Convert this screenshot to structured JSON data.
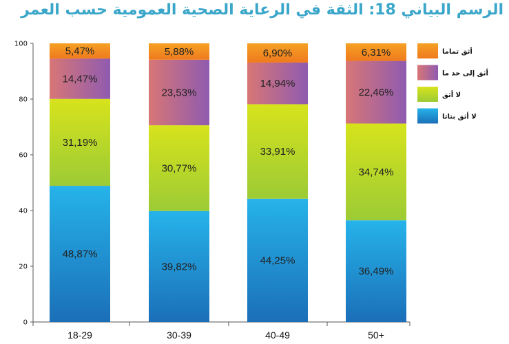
{
  "title": "الرسم البياني 18: الثقة في الرعاية الصحية العمومية حسب العمر",
  "chart_data": {
    "type": "bar",
    "stacked": true,
    "categories": [
      "18-29",
      "30-39",
      "40-49",
      "50+"
    ],
    "ylim": [
      0,
      100
    ],
    "yticks": [
      0,
      20,
      40,
      60,
      80,
      100
    ],
    "grid": false,
    "legend_position": "right",
    "series": [
      {
        "name": "لا أثق بتاتا",
        "values": [
          48.87,
          39.82,
          44.25,
          36.49
        ],
        "labels": [
          "48,87%",
          "39,82%",
          "44,25%",
          "36,49%"
        ],
        "color_top": "#26b3ea",
        "color_bottom": "#1b6fb8"
      },
      {
        "name": "لا أثق",
        "values": [
          31.19,
          30.77,
          33.91,
          34.74
        ],
        "labels": [
          "31,19%",
          "30,77%",
          "33,91%",
          "34,74%"
        ],
        "color_top": "#d7e31c",
        "color_bottom": "#9ccb35"
      },
      {
        "name": "أثق إلى حد ما",
        "values": [
          14.47,
          23.53,
          14.94,
          22.46
        ],
        "labels": [
          "14,47%",
          "23,53%",
          "14,94%",
          "22,46%"
        ],
        "color_left": "#d87676",
        "color_right": "#8f5bb0"
      },
      {
        "name": "أثق تماما",
        "values": [
          5.47,
          5.88,
          6.9,
          6.31
        ],
        "labels": [
          "5,47%",
          "5,88%",
          "6,90%",
          "6,31%"
        ],
        "color_top": "#f5a124",
        "color_bottom": "#ef7a1e"
      }
    ]
  }
}
